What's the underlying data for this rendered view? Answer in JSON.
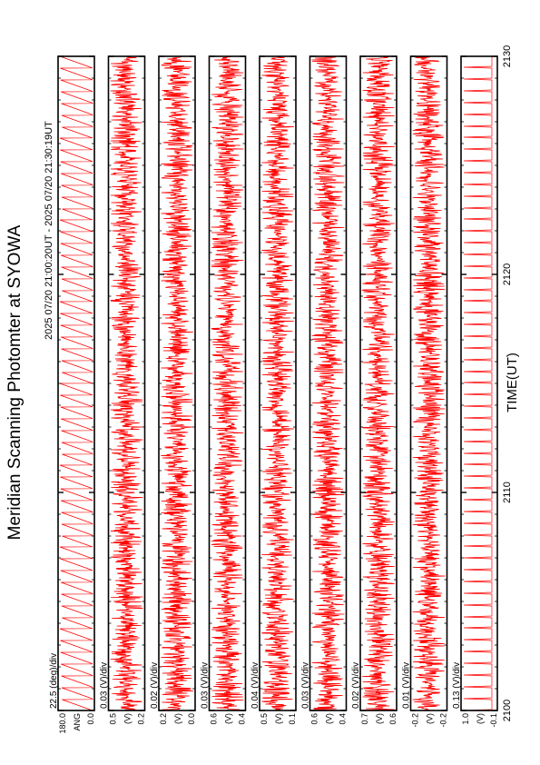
{
  "chart_data": {
    "type": "line",
    "title": "Meridian Scanning Photomter at SYOWA",
    "time_range": "2025 07/20 21:00:20UT - 2025 07/20 21:30:19UT",
    "xlabel": "TIME(UT)",
    "x_range": [
      2100,
      2130
    ],
    "x_ticks": [
      "2100",
      "2110",
      "2120",
      "2130"
    ],
    "series_color": "#ff0000",
    "panels": [
      {
        "scale": "22.5 (deg)/div",
        "ylabel": "ANG",
        "y_ticks": [
          "0.0",
          "180.0"
        ],
        "signal": "sawtooth"
      },
      {
        "scale": "0.03 (V)/div",
        "ylabel": "(V)",
        "y_ticks": [
          "0.2",
          "0.5"
        ],
        "signal": "noise"
      },
      {
        "scale": "0.02 (V)/div",
        "ylabel": "(V)",
        "y_ticks": [
          "0.0",
          "0.2"
        ],
        "signal": "noise"
      },
      {
        "scale": "0.03 (V)/div",
        "ylabel": "(V)",
        "y_ticks": [
          "0.4",
          "0.6"
        ],
        "signal": "noise"
      },
      {
        "scale": "0.04 (V)/div",
        "ylabel": "(V)",
        "y_ticks": [
          "0.1",
          "0.5"
        ],
        "signal": "noise"
      },
      {
        "scale": "0.03 (V)/div",
        "ylabel": "(V)",
        "y_ticks": [
          "0.4",
          "0.6"
        ],
        "signal": "noise"
      },
      {
        "scale": "0.02 (V)/div",
        "ylabel": "(V)",
        "y_ticks": [
          "0.6",
          "0.7"
        ],
        "signal": "noise"
      },
      {
        "scale": "0.01 (V)/div",
        "ylabel": "(V)",
        "y_ticks": [
          "-0.2",
          "-0.2"
        ],
        "signal": "noise"
      },
      {
        "scale": "0.13 (V)/div",
        "ylabel": "(V)",
        "y_ticks": [
          "-0.1",
          "1.0"
        ],
        "signal": "spikes"
      }
    ]
  }
}
